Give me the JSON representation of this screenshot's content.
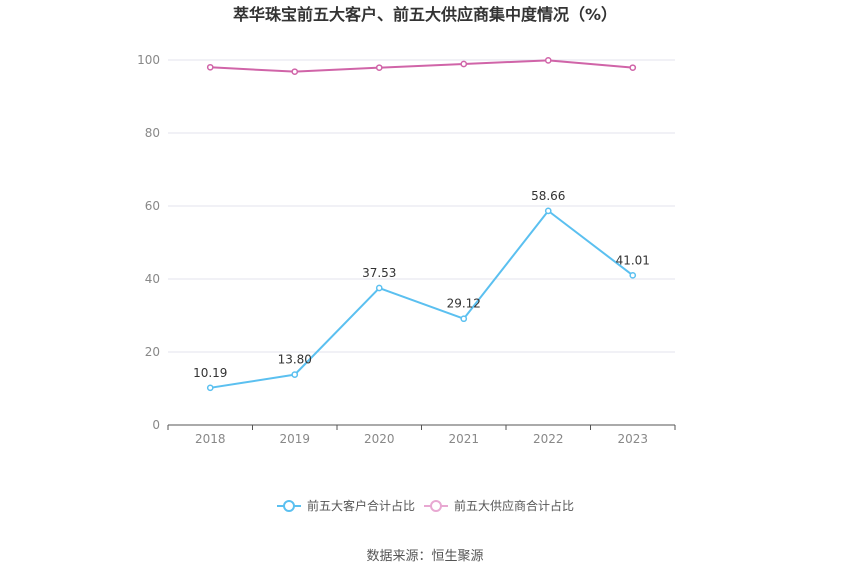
{
  "chart_data": {
    "type": "line",
    "title": "萃华珠宝前五大客户、前五大供应商集中度情况（%）",
    "categories": [
      "2018",
      "2019",
      "2020",
      "2021",
      "2022",
      "2023"
    ],
    "ylim": [
      0,
      100
    ],
    "yticks": [
      "0",
      "20",
      "40",
      "60",
      "80",
      "100"
    ],
    "grid": true,
    "legend_position": "bottom",
    "series": [
      {
        "name": "前五大客户合计占比",
        "color": "#5bc0f0",
        "values": [
          10.19,
          13.8,
          37.53,
          29.12,
          58.66,
          41.01
        ],
        "labels": [
          "10.19",
          "13.80",
          "37.53",
          "29.12",
          "58.66",
          "41.01"
        ]
      },
      {
        "name": "前五大供应商合计占比",
        "color": "#d064a8",
        "values": [
          98.0,
          96.8,
          97.9,
          98.9,
          99.9,
          97.9
        ]
      }
    ],
    "legend_colors": [
      "#5bc0f0",
      "#e8a8d2"
    ]
  },
  "source": "数据来源：恒生聚源"
}
